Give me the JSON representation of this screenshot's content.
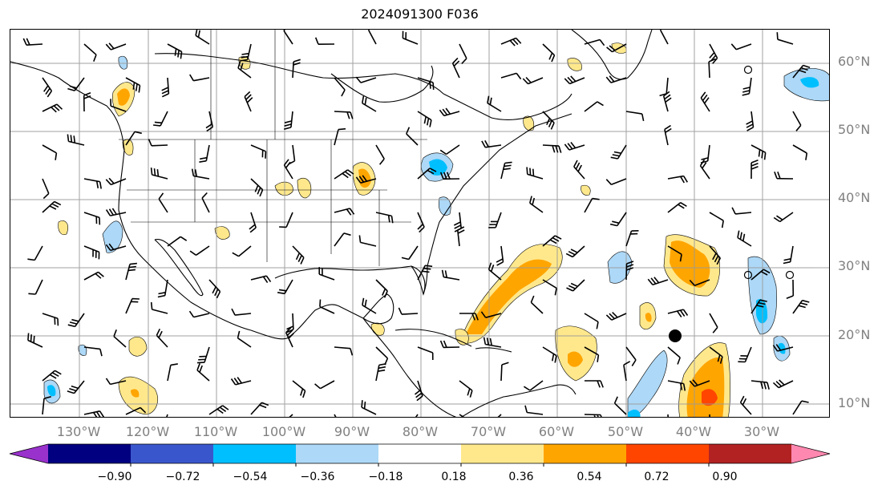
{
  "title": "2024091300 F036",
  "lat_labels": [
    "60°N",
    "50°N",
    "40°N",
    "30°N",
    "20°N",
    "10°N"
  ],
  "lon_labels": [
    "130°W",
    "120°W",
    "110°W",
    "100°W",
    "90°W",
    "80°W",
    "70°W",
    "60°W",
    "50°W",
    "40°W",
    "30°W"
  ],
  "colorbar": {
    "ticks": [
      "−0.90",
      "−0.72",
      "−0.54",
      "−0.36",
      "−0.18",
      "0.18",
      "0.36",
      "0.54",
      "0.72",
      "0.90"
    ],
    "colors": [
      "#9932cc",
      "#000080",
      "#3a56cc",
      "#00bfff",
      "#add8f7",
      "#ffffff",
      "#ffe88c",
      "#ffa500",
      "#ff4500",
      "#b22222",
      "#ff88b0"
    ]
  },
  "colors": {
    "land_line": "#000000",
    "grid": "#999999",
    "axis_label": "#808080"
  }
}
